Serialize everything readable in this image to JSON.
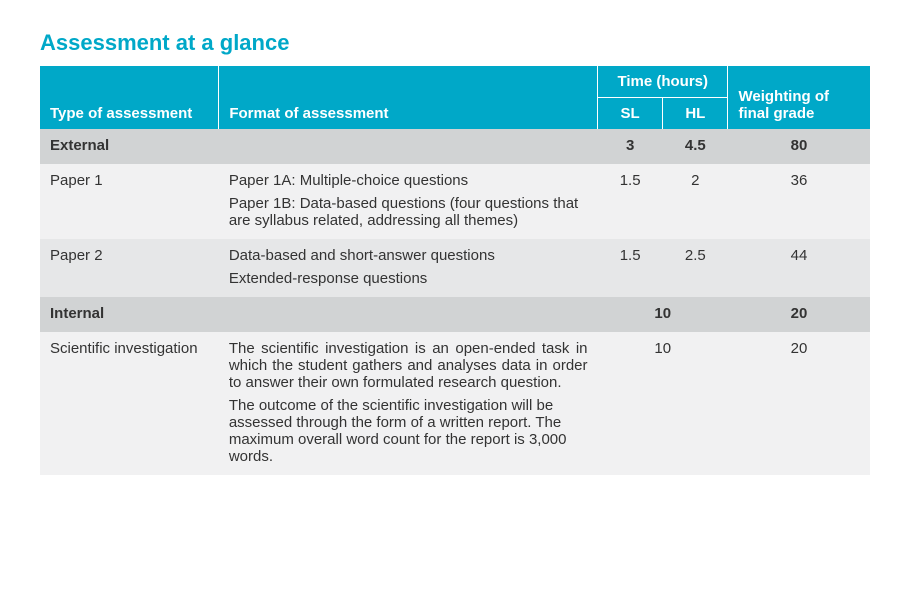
{
  "title": "Assessment at a glance",
  "headers": {
    "type": "Type of assessment",
    "format": "Format of assessment",
    "time": "Time (hours)",
    "sl": "SL",
    "hl": "HL",
    "weight": "Weighting of final grade"
  },
  "rows": {
    "external": {
      "label": "External",
      "sl": "3",
      "hl": "4.5",
      "weight": "80"
    },
    "paper1": {
      "type": "Paper 1",
      "line1": "Paper 1A: Multiple-choice questions",
      "line2": "Paper 1B: Data-based questions (four questions that are syllabus related, addressing all themes)",
      "sl": "1.5",
      "hl": "2",
      "weight": "36"
    },
    "paper2": {
      "type": "Paper 2",
      "line1": "Data-based and short-answer questions",
      "line2": "Extended-response questions",
      "sl": "1.5",
      "hl": "2.5",
      "weight": "44"
    },
    "internal": {
      "label": "Internal",
      "time": "10",
      "weight": "20"
    },
    "scientific": {
      "type": "Scientific investigation",
      "para1": "The scientific investigation is an open-ended task in which the student gathers and analyses data in order to answer their own formulated research question.",
      "para2": "The outcome of the scientific investigation will be assessed through the form of a written report. The maximum overall word count for the report is 3,000 words.",
      "time": "10",
      "weight": "20"
    }
  },
  "colors": {
    "accent": "#00a8c8",
    "group_bg": "#d1d3d4",
    "row_light": "#f1f1f2",
    "row_grey": "#e6e7e8",
    "text": "#333333"
  },
  "fontsize": {
    "title": 22,
    "header": 15,
    "body": 15
  }
}
